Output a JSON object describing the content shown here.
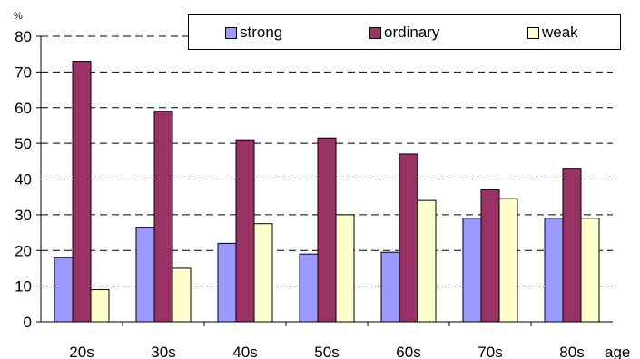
{
  "chart_data": {
    "type": "bar",
    "title": "",
    "xlabel": "age",
    "ylabel": "%",
    "ylim": [
      0,
      80
    ],
    "yticks": [
      0,
      10,
      20,
      30,
      40,
      50,
      60,
      70,
      80
    ],
    "grid": "dashed horizontal",
    "legend_position": "top-right",
    "categories": [
      "20s",
      "30s",
      "40s",
      "50s",
      "60s",
      "70s",
      "80s"
    ],
    "series": [
      {
        "name": "strong",
        "color": "#9999ff",
        "values": [
          18,
          26.5,
          22,
          19,
          19.5,
          29,
          29
        ]
      },
      {
        "name": "ordinary",
        "color": "#993366",
        "values": [
          73,
          59,
          51,
          51.5,
          47,
          37,
          43
        ]
      },
      {
        "name": "weak",
        "color": "#ffffcc",
        "values": [
          9,
          15,
          27.5,
          30,
          34,
          34.5,
          29
        ]
      }
    ]
  }
}
